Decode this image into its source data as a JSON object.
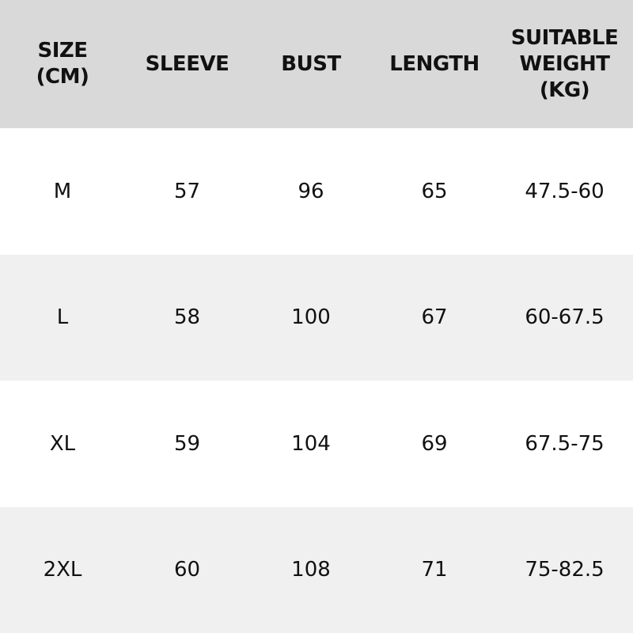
{
  "headers": [
    "SIZE\n(CM)",
    "SLEEVE",
    "BUST",
    "LENGTH",
    "SUITABLE\nWEIGHT\n(KG)"
  ],
  "rows": [
    [
      "M",
      "57",
      "96",
      "65",
      "47.5-60"
    ],
    [
      "L",
      "58",
      "100",
      "67",
      "60-67.5"
    ],
    [
      "XL",
      "59",
      "104",
      "69",
      "67.5-75"
    ],
    [
      "2XL",
      "60",
      "108",
      "71",
      "75-82.5"
    ]
  ],
  "colors": {
    "header_bg": "#d9d9d9",
    "alt_row_bg": "#f0f0f0",
    "row_bg": "#ffffff"
  }
}
